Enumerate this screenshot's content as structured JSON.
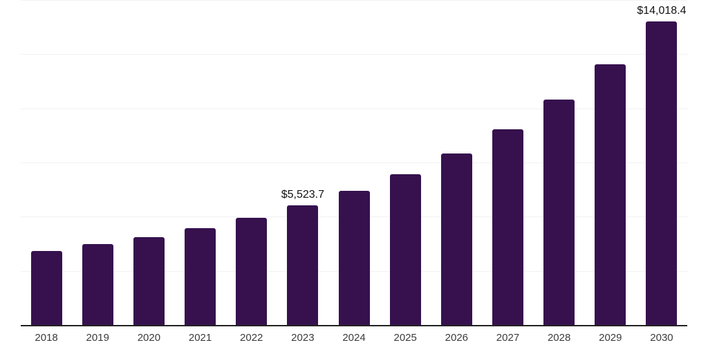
{
  "chart_data": {
    "type": "bar",
    "title": "",
    "xlabel": "",
    "ylabel": "",
    "categories": [
      "2018",
      "2019",
      "2020",
      "2021",
      "2022",
      "2023",
      "2024",
      "2025",
      "2026",
      "2027",
      "2028",
      "2029",
      "2030"
    ],
    "values": [
      3420,
      3730,
      4050,
      4470,
      4950,
      5523.7,
      6190,
      6960,
      7920,
      9030,
      10400,
      12030,
      14018.4
    ],
    "data_labels": [
      null,
      null,
      null,
      null,
      null,
      "$5,523.7",
      null,
      null,
      null,
      null,
      null,
      null,
      "$14,018.4"
    ],
    "ylim": [
      0,
      15000
    ],
    "gridline_values": [
      2500,
      5000,
      7500,
      10000,
      12500,
      15000
    ],
    "grid": true,
    "legend": false,
    "colors": {
      "bar": "#36114E",
      "axis_line": "#222222",
      "gridline": "#F2F2F2",
      "data_label": "#111111",
      "tick_label": "#3B3B3B",
      "background": "#FFFFFF"
    }
  }
}
